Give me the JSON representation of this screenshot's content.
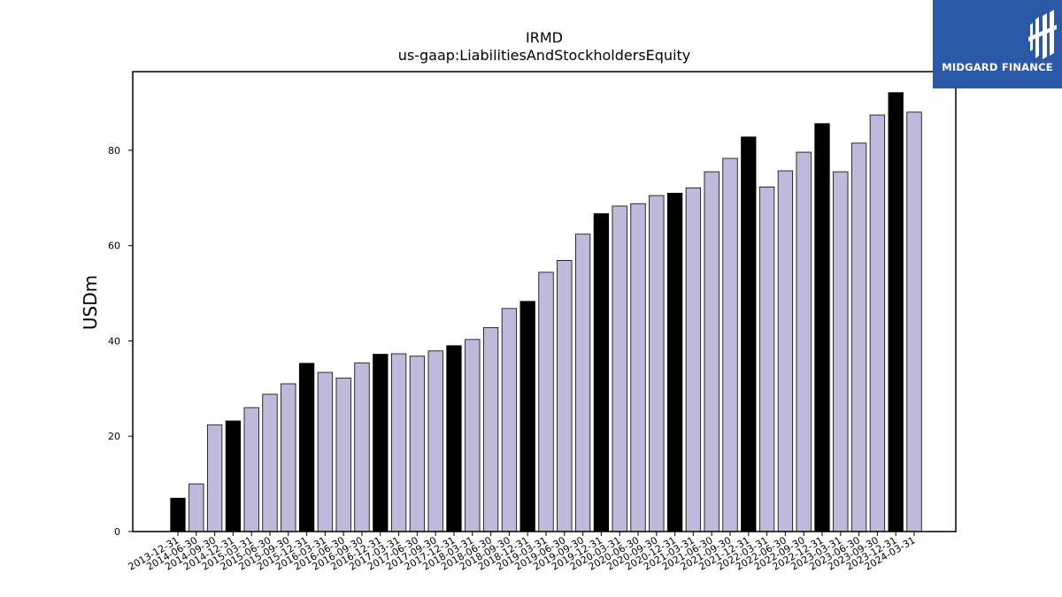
{
  "logo": {
    "text": "MIDGARD FINANCE",
    "background": "#2b59a8"
  },
  "chart_data": {
    "type": "bar",
    "title": "IRMD",
    "subtitle": "us-gaap:LiabilitiesAndStockholdersEquity",
    "xlabel": "",
    "ylabel": "USDm",
    "ylim": [
      0,
      96.5
    ],
    "yticks": [
      0,
      20,
      40,
      60,
      80
    ],
    "grid": false,
    "colors": {
      "annual": "#000000",
      "quarterly": "#bfbadb"
    },
    "categories": [
      "2013-12-31",
      "2014-06-30",
      "2014-09-30",
      "2014-12-31",
      "2015-03-31",
      "2015-06-30",
      "2015-09-30",
      "2015-12-31",
      "2016-03-31",
      "2016-06-30",
      "2016-09-30",
      "2016-12-31",
      "2017-03-31",
      "2017-06-30",
      "2017-09-30",
      "2017-12-31",
      "2018-03-31",
      "2018-06-30",
      "2018-09-30",
      "2018-12-31",
      "2019-03-31",
      "2019-06-30",
      "2019-09-30",
      "2019-12-31",
      "2020-03-31",
      "2020-06-30",
      "2020-09-30",
      "2020-12-31",
      "2021-03-31",
      "2021-06-30",
      "2021-09-30",
      "2021-12-31",
      "2022-03-31",
      "2022-06-30",
      "2022-09-30",
      "2022-12-31",
      "2023-03-31",
      "2023-06-30",
      "2023-09-30",
      "2023-12-31",
      "2024-03-31"
    ],
    "values": [
      7.0,
      10.0,
      22.4,
      23.2,
      26.0,
      28.8,
      31.0,
      35.3,
      33.4,
      32.2,
      35.4,
      37.2,
      37.3,
      36.8,
      37.9,
      39.0,
      40.3,
      42.8,
      46.8,
      48.3,
      54.4,
      56.9,
      62.4,
      66.7,
      68.3,
      68.8,
      70.5,
      71.0,
      72.1,
      75.5,
      78.3,
      82.8,
      72.3,
      75.7,
      79.6,
      85.6,
      75.5,
      81.5,
      87.4,
      92.1,
      88.0
    ],
    "highlight": [
      true,
      false,
      false,
      true,
      false,
      false,
      false,
      true,
      false,
      false,
      false,
      true,
      false,
      false,
      false,
      true,
      false,
      false,
      false,
      true,
      false,
      false,
      false,
      true,
      false,
      false,
      false,
      true,
      false,
      false,
      false,
      true,
      false,
      false,
      false,
      true,
      false,
      false,
      false,
      true,
      false
    ]
  }
}
